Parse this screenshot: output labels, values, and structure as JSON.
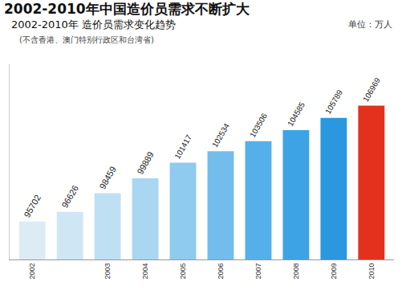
{
  "chart_data": {
    "type": "bar",
    "title": "2002-2010年中国造价员需求不断扩大",
    "subtitle": "2002-2010年 造价员需求变化趋势",
    "annotations": [
      "(不含香港、澳门特别行政区和台湾省)",
      "单位：万人"
    ],
    "categories": [
      "2002",
      null,
      "2003",
      "2004",
      "2005",
      "2006",
      "2007",
      "2008",
      "2009",
      "2010"
    ],
    "values": [
      95702,
      96626,
      98459,
      99889,
      101417,
      102534,
      103506,
      104585,
      105789,
      106969
    ],
    "colors": [
      "#dcecf5",
      "#cfe6f4",
      "#bfe0f3",
      "#a9d6f1",
      "#8fcaef",
      "#72bdec",
      "#55afe8",
      "#3ea3e4",
      "#2a97df",
      "#e2321e"
    ],
    "ylim": [
      92000,
      111000
    ],
    "data_labels": true,
    "tick_labels": "x",
    "grid": false
  }
}
